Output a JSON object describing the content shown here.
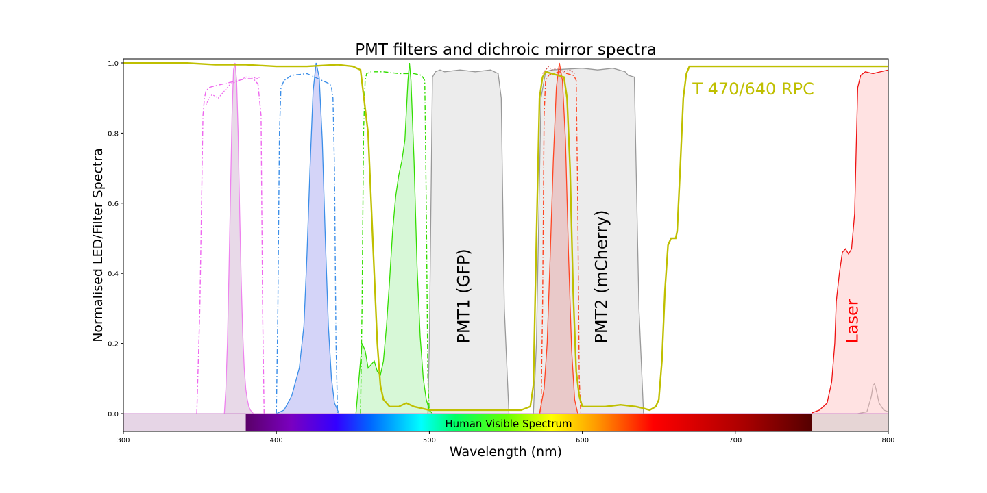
{
  "chart_data": {
    "type": "area",
    "title": "PMT filters and dichroic mirror spectra",
    "xlabel": "Wavelength (nm)",
    "ylabel": "Normalised LED/Filter Spectra",
    "xlim": [
      300,
      800
    ],
    "ylim": [
      -0.05,
      1.02
    ],
    "xticks": [
      300,
      400,
      500,
      600,
      700,
      800
    ],
    "yticks": [
      0.0,
      0.2,
      0.4,
      0.6,
      0.8,
      1.0
    ],
    "grid": false,
    "visible_spectrum": {
      "label": "Human Visible Spectrum",
      "range": [
        380,
        750
      ]
    },
    "annotations": [
      {
        "text": "PMT1 (GFP)",
        "x": 526,
        "y": 0.2,
        "rotation": 90,
        "color": "#000000"
      },
      {
        "text": "PMT2 (mCherry)",
        "x": 616,
        "y": 0.2,
        "rotation": 90,
        "color": "#000000"
      },
      {
        "text": "T 470/640 RPC",
        "x": 672,
        "y": 0.91,
        "rotation": 0,
        "color": "#bfbf00"
      },
      {
        "text": "Laser",
        "x": 780,
        "y": 0.2,
        "rotation": 90,
        "color": "#ff0000"
      }
    ],
    "series": [
      {
        "style": "fill",
        "color": "#999999",
        "fill": "#ececec",
        "x": [
          499,
          500,
          502,
          504,
          507,
          510,
          520,
          530,
          540,
          545,
          547,
          549,
          552
        ],
        "y": [
          0,
          0.2,
          0.96,
          0.975,
          0.98,
          0.975,
          0.98,
          0.975,
          0.98,
          0.97,
          0.9,
          0.3,
          0
        ]
      },
      {
        "style": "fill",
        "color": "#999999",
        "fill": "#ececec",
        "x": [
          568,
          570,
          573,
          576,
          580,
          600,
          610,
          620,
          628,
          630,
          634,
          637,
          640
        ],
        "y": [
          0,
          0.2,
          0.9,
          0.975,
          0.98,
          0.985,
          0.98,
          0.985,
          0.975,
          0.965,
          0.96,
          0.3,
          0
        ]
      },
      {
        "style": "fill",
        "color": "#999999",
        "fill": "none",
        "x": [
          780,
          786,
          789,
          790,
          791,
          792,
          794,
          797,
          800
        ],
        "y": [
          0,
          0.005,
          0.05,
          0.08,
          0.085,
          0.07,
          0.03,
          0.01,
          0.005
        ]
      },
      {
        "style": "fill",
        "color": "#ee82ee",
        "fill": "rgba(205,170,205,0.45)",
        "x": [
          366,
          367,
          368,
          369,
          370,
          371,
          372,
          373,
          374,
          375,
          376,
          377,
          378,
          379,
          380,
          381,
          382,
          383,
          384,
          385
        ],
        "y": [
          0,
          0.07,
          0.2,
          0.4,
          0.62,
          0.85,
          0.98,
          1.0,
          0.95,
          0.8,
          0.58,
          0.38,
          0.23,
          0.13,
          0.07,
          0.04,
          0.02,
          0.01,
          0.005,
          0
        ]
      },
      {
        "style": "fill",
        "color": "#3b8ee8",
        "fill": "rgba(160,160,240,0.45)",
        "x": [
          400,
          405,
          410,
          415,
          418,
          420,
          422,
          424,
          426,
          428,
          430,
          432,
          434,
          436,
          438,
          440,
          441
        ],
        "y": [
          0,
          0.01,
          0.05,
          0.13,
          0.25,
          0.45,
          0.7,
          0.92,
          1.0,
          0.96,
          0.78,
          0.5,
          0.25,
          0.1,
          0.03,
          0.01,
          0
        ]
      },
      {
        "style": "fill",
        "color": "#33dd00",
        "fill": "rgba(140,235,140,0.35)",
        "x": [
          452,
          454,
          456,
          458,
          460,
          462,
          464,
          466,
          468,
          470,
          472,
          474,
          476,
          478,
          480,
          482,
          484,
          486,
          487,
          488,
          490,
          492,
          494,
          496,
          498,
          500,
          502
        ],
        "y": [
          0,
          0.1,
          0.2,
          0.18,
          0.13,
          0.14,
          0.15,
          0.12,
          0.11,
          0.15,
          0.25,
          0.38,
          0.52,
          0.62,
          0.68,
          0.72,
          0.78,
          0.95,
          1.0,
          0.95,
          0.72,
          0.42,
          0.22,
          0.1,
          0.04,
          0.01,
          0
        ]
      },
      {
        "style": "fill",
        "color": "#ff4422",
        "fill": "rgba(230,150,150,0.4)",
        "x": [
          572,
          575,
          577,
          579,
          581,
          583,
          585,
          587,
          589,
          591,
          593,
          595,
          597
        ],
        "y": [
          0,
          0.07,
          0.2,
          0.45,
          0.72,
          0.93,
          1.0,
          0.95,
          0.78,
          0.45,
          0.18,
          0.04,
          0
        ]
      },
      {
        "style": "fill",
        "color": "#ee1111",
        "fill": "rgba(255,190,190,0.45)",
        "x": [
          750,
          755,
          760,
          763,
          765,
          766,
          768,
          770,
          772,
          774,
          776,
          778,
          779,
          780,
          782,
          785,
          790,
          795,
          800
        ],
        "y": [
          0.002,
          0.01,
          0.03,
          0.09,
          0.2,
          0.32,
          0.4,
          0.46,
          0.47,
          0.455,
          0.47,
          0.57,
          0.75,
          0.93,
          0.965,
          0.975,
          0.97,
          0.975,
          0.98
        ]
      },
      {
        "style": "dashdot",
        "color": "#ee66ee",
        "x": [
          348,
          350,
          352,
          353,
          354,
          356,
          360,
          370,
          380,
          385,
          388,
          390,
          391,
          392
        ],
        "y": [
          0,
          0.3,
          0.85,
          0.9,
          0.92,
          0.93,
          0.935,
          0.945,
          0.955,
          0.955,
          0.94,
          0.85,
          0.3,
          0
        ]
      },
      {
        "style": "dotted",
        "color": "#ee66ee",
        "x": [
          354,
          356,
          358,
          362,
          366,
          370,
          376,
          380,
          384,
          388,
          389
        ],
        "y": [
          0.88,
          0.9,
          0.91,
          0.9,
          0.92,
          0.94,
          0.95,
          0.96,
          0.96,
          0.955,
          0.96
        ]
      },
      {
        "style": "dashdot",
        "color": "#3b8ee8",
        "x": [
          400,
          401,
          402,
          403,
          405,
          410,
          420,
          430,
          435,
          436,
          437,
          438,
          439,
          440
        ],
        "y": [
          0,
          0.3,
          0.8,
          0.93,
          0.95,
          0.965,
          0.97,
          0.95,
          0.94,
          0.93,
          0.9,
          0.7,
          0.2,
          0
        ]
      },
      {
        "style": "dashdot",
        "color": "#33dd00",
        "x": [
          455,
          456,
          457,
          458,
          459,
          462,
          470,
          480,
          490,
          495,
          497,
          498,
          499,
          500
        ],
        "y": [
          0,
          0.3,
          0.8,
          0.95,
          0.97,
          0.975,
          0.975,
          0.97,
          0.97,
          0.965,
          0.95,
          0.6,
          0.1,
          0
        ]
      },
      {
        "style": "dashdot",
        "color": "#ff4422",
        "x": [
          573,
          574,
          575,
          576,
          578,
          580,
          585,
          590,
          594,
          595,
          596,
          597,
          598,
          599
        ],
        "y": [
          0,
          0.3,
          0.85,
          0.95,
          0.965,
          0.97,
          0.975,
          0.97,
          0.965,
          0.96,
          0.95,
          0.6,
          0.1,
          0
        ]
      },
      {
        "style": "dotted",
        "color": "#cc4444",
        "x": [
          574,
          576,
          578,
          580,
          584,
          588,
          592,
          595
        ],
        "y": [
          0.97,
          0.98,
          0.99,
          0.98,
          0.985,
          0.975,
          0.98,
          0.97
        ]
      },
      {
        "style": "solid",
        "color": "#bfbf00",
        "x": [
          300,
          340,
          360,
          380,
          400,
          420,
          440,
          450,
          455,
          460,
          464,
          466,
          468,
          470,
          472,
          474,
          480,
          485,
          490,
          495,
          500,
          505,
          510,
          520,
          540,
          550,
          560,
          566,
          568,
          570,
          572,
          574,
          576,
          580,
          584,
          588,
          590,
          592,
          594,
          596,
          598,
          600,
          605,
          615,
          625,
          635,
          640,
          644,
          648,
          650,
          652,
          654,
          656,
          658,
          659,
          661,
          662,
          664,
          666,
          668,
          670,
          672,
          680,
          700,
          720,
          760,
          800
        ],
        "y": [
          1.0,
          1.0,
          0.995,
          0.995,
          0.99,
          0.99,
          0.995,
          0.99,
          0.98,
          0.8,
          0.4,
          0.2,
          0.08,
          0.04,
          0.03,
          0.02,
          0.02,
          0.03,
          0.02,
          0.015,
          0.01,
          0.01,
          0.01,
          0.01,
          0.01,
          0.01,
          0.01,
          0.02,
          0.08,
          0.5,
          0.9,
          0.96,
          0.975,
          0.97,
          0.965,
          0.96,
          0.9,
          0.7,
          0.35,
          0.12,
          0.05,
          0.02,
          0.02,
          0.02,
          0.025,
          0.02,
          0.015,
          0.01,
          0.02,
          0.04,
          0.15,
          0.35,
          0.48,
          0.5,
          0.5,
          0.5,
          0.52,
          0.7,
          0.9,
          0.97,
          0.99,
          0.99,
          0.99,
          0.99,
          0.99,
          0.99,
          0.99
        ]
      }
    ]
  }
}
